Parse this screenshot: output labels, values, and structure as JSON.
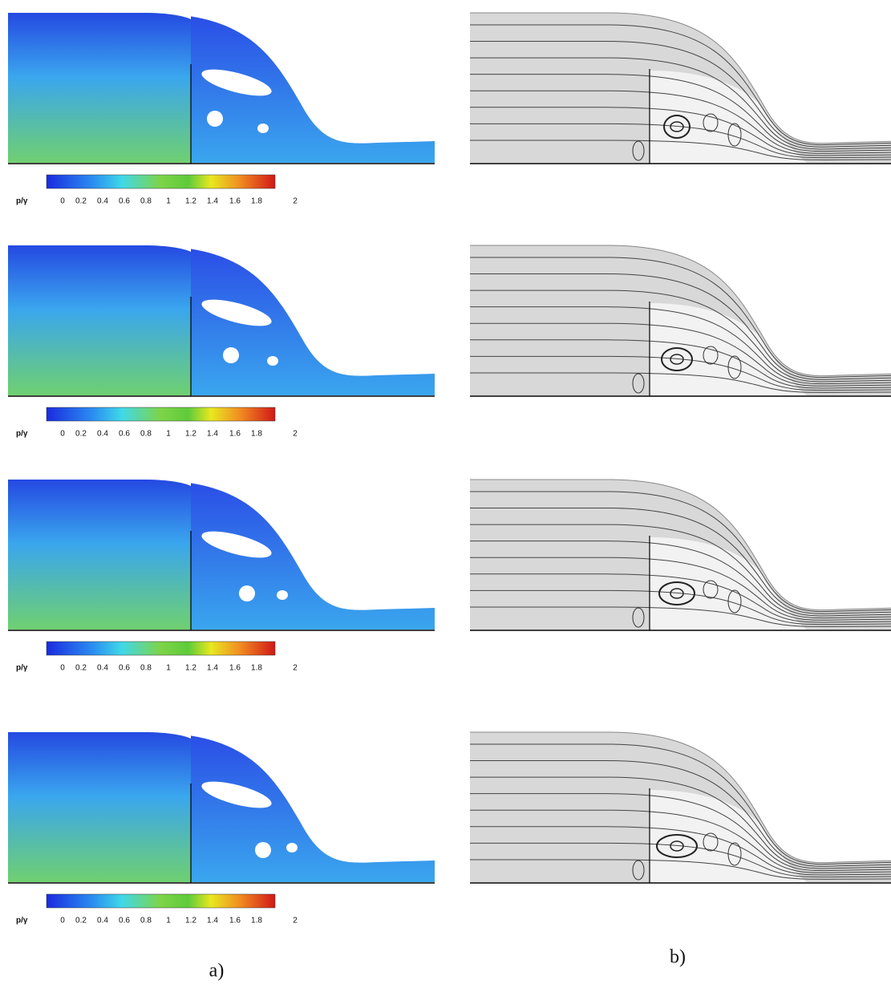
{
  "panels": [
    {
      "colorbar": {
        "label": "p/γ",
        "ticks": [
          "0",
          "0.2",
          "0.4",
          "0.6",
          "0.8",
          "1",
          "1.2",
          "1.4",
          "1.6",
          "1.8",
          "2"
        ]
      }
    },
    {
      "colorbar": {
        "label": "p/γ",
        "ticks": [
          "0",
          "0.2",
          "0.4",
          "0.6",
          "0.8",
          "1",
          "1.2",
          "1.4",
          "1.6",
          "1.8",
          "2"
        ]
      }
    },
    {
      "colorbar": {
        "label": "p/γ",
        "ticks": [
          "0",
          "0.2",
          "0.4",
          "0.6",
          "0.8",
          "1",
          "1.2",
          "1.4",
          "1.6",
          "1.8",
          "2"
        ]
      }
    },
    {
      "colorbar": {
        "label": "p/γ",
        "ticks": [
          "0",
          "0.2",
          "0.4",
          "0.6",
          "0.8",
          "1",
          "1.2",
          "1.4",
          "1.6",
          "1.8",
          "2"
        ]
      }
    }
  ],
  "captions": {
    "a": "a)",
    "b": "b)"
  }
}
